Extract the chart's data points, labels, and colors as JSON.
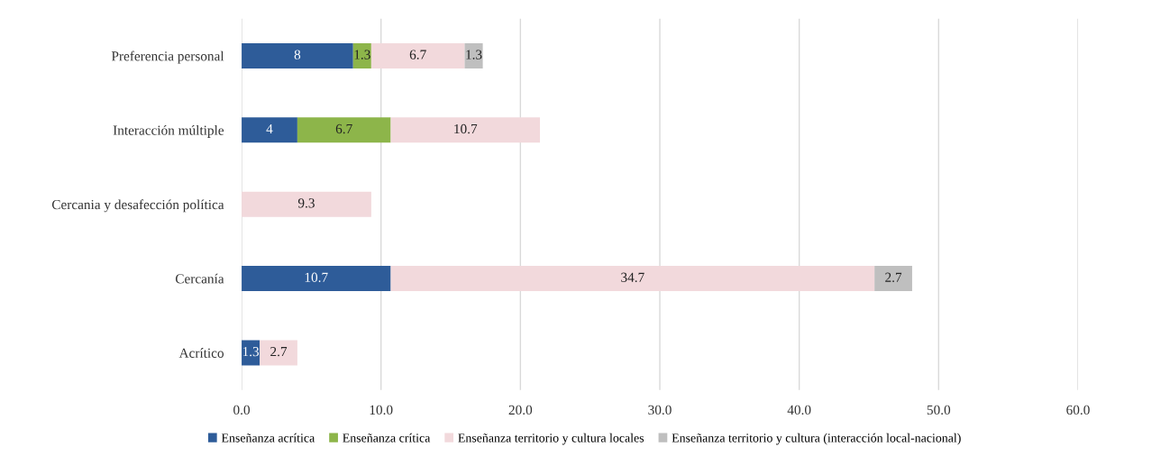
{
  "chart_data": {
    "type": "bar",
    "orientation": "horizontal",
    "stacked": true,
    "data_labels": true,
    "grid": "x",
    "legend": "bottom",
    "categories": [
      "Preferencia personal",
      "Interacción múltiple",
      "Cercania y desafección política",
      "Cercanía",
      "Acrítico"
    ],
    "series": [
      {
        "name": "Enseñanza acrítica",
        "color": "#2e5c99",
        "values": [
          8,
          4,
          null,
          10.7,
          1.3
        ]
      },
      {
        "name": "Enseñanza crítica",
        "color": "#8db54a",
        "values": [
          1.3,
          6.7,
          null,
          null,
          null
        ]
      },
      {
        "name": "Enseñanza territorio y cultura locales",
        "color": "#f2d9dc",
        "values": [
          6.7,
          10.7,
          9.3,
          34.7,
          2.7
        ]
      },
      {
        "name": "Enseñanza territorio y cultura (interacción local-nacional)",
        "color": "#bfbfbf",
        "values": [
          1.3,
          null,
          null,
          2.7,
          null
        ]
      }
    ],
    "xlim": [
      0,
      60
    ],
    "xticks": [
      {
        "value": 0,
        "label": "0.0"
      },
      {
        "value": 10,
        "label": "10.0"
      },
      {
        "value": 20,
        "label": "20.0"
      },
      {
        "value": 30,
        "label": "30.0"
      },
      {
        "value": 40,
        "label": "40.0"
      },
      {
        "value": 50,
        "label": "50.0"
      },
      {
        "value": 60,
        "label": "60.0"
      }
    ]
  }
}
